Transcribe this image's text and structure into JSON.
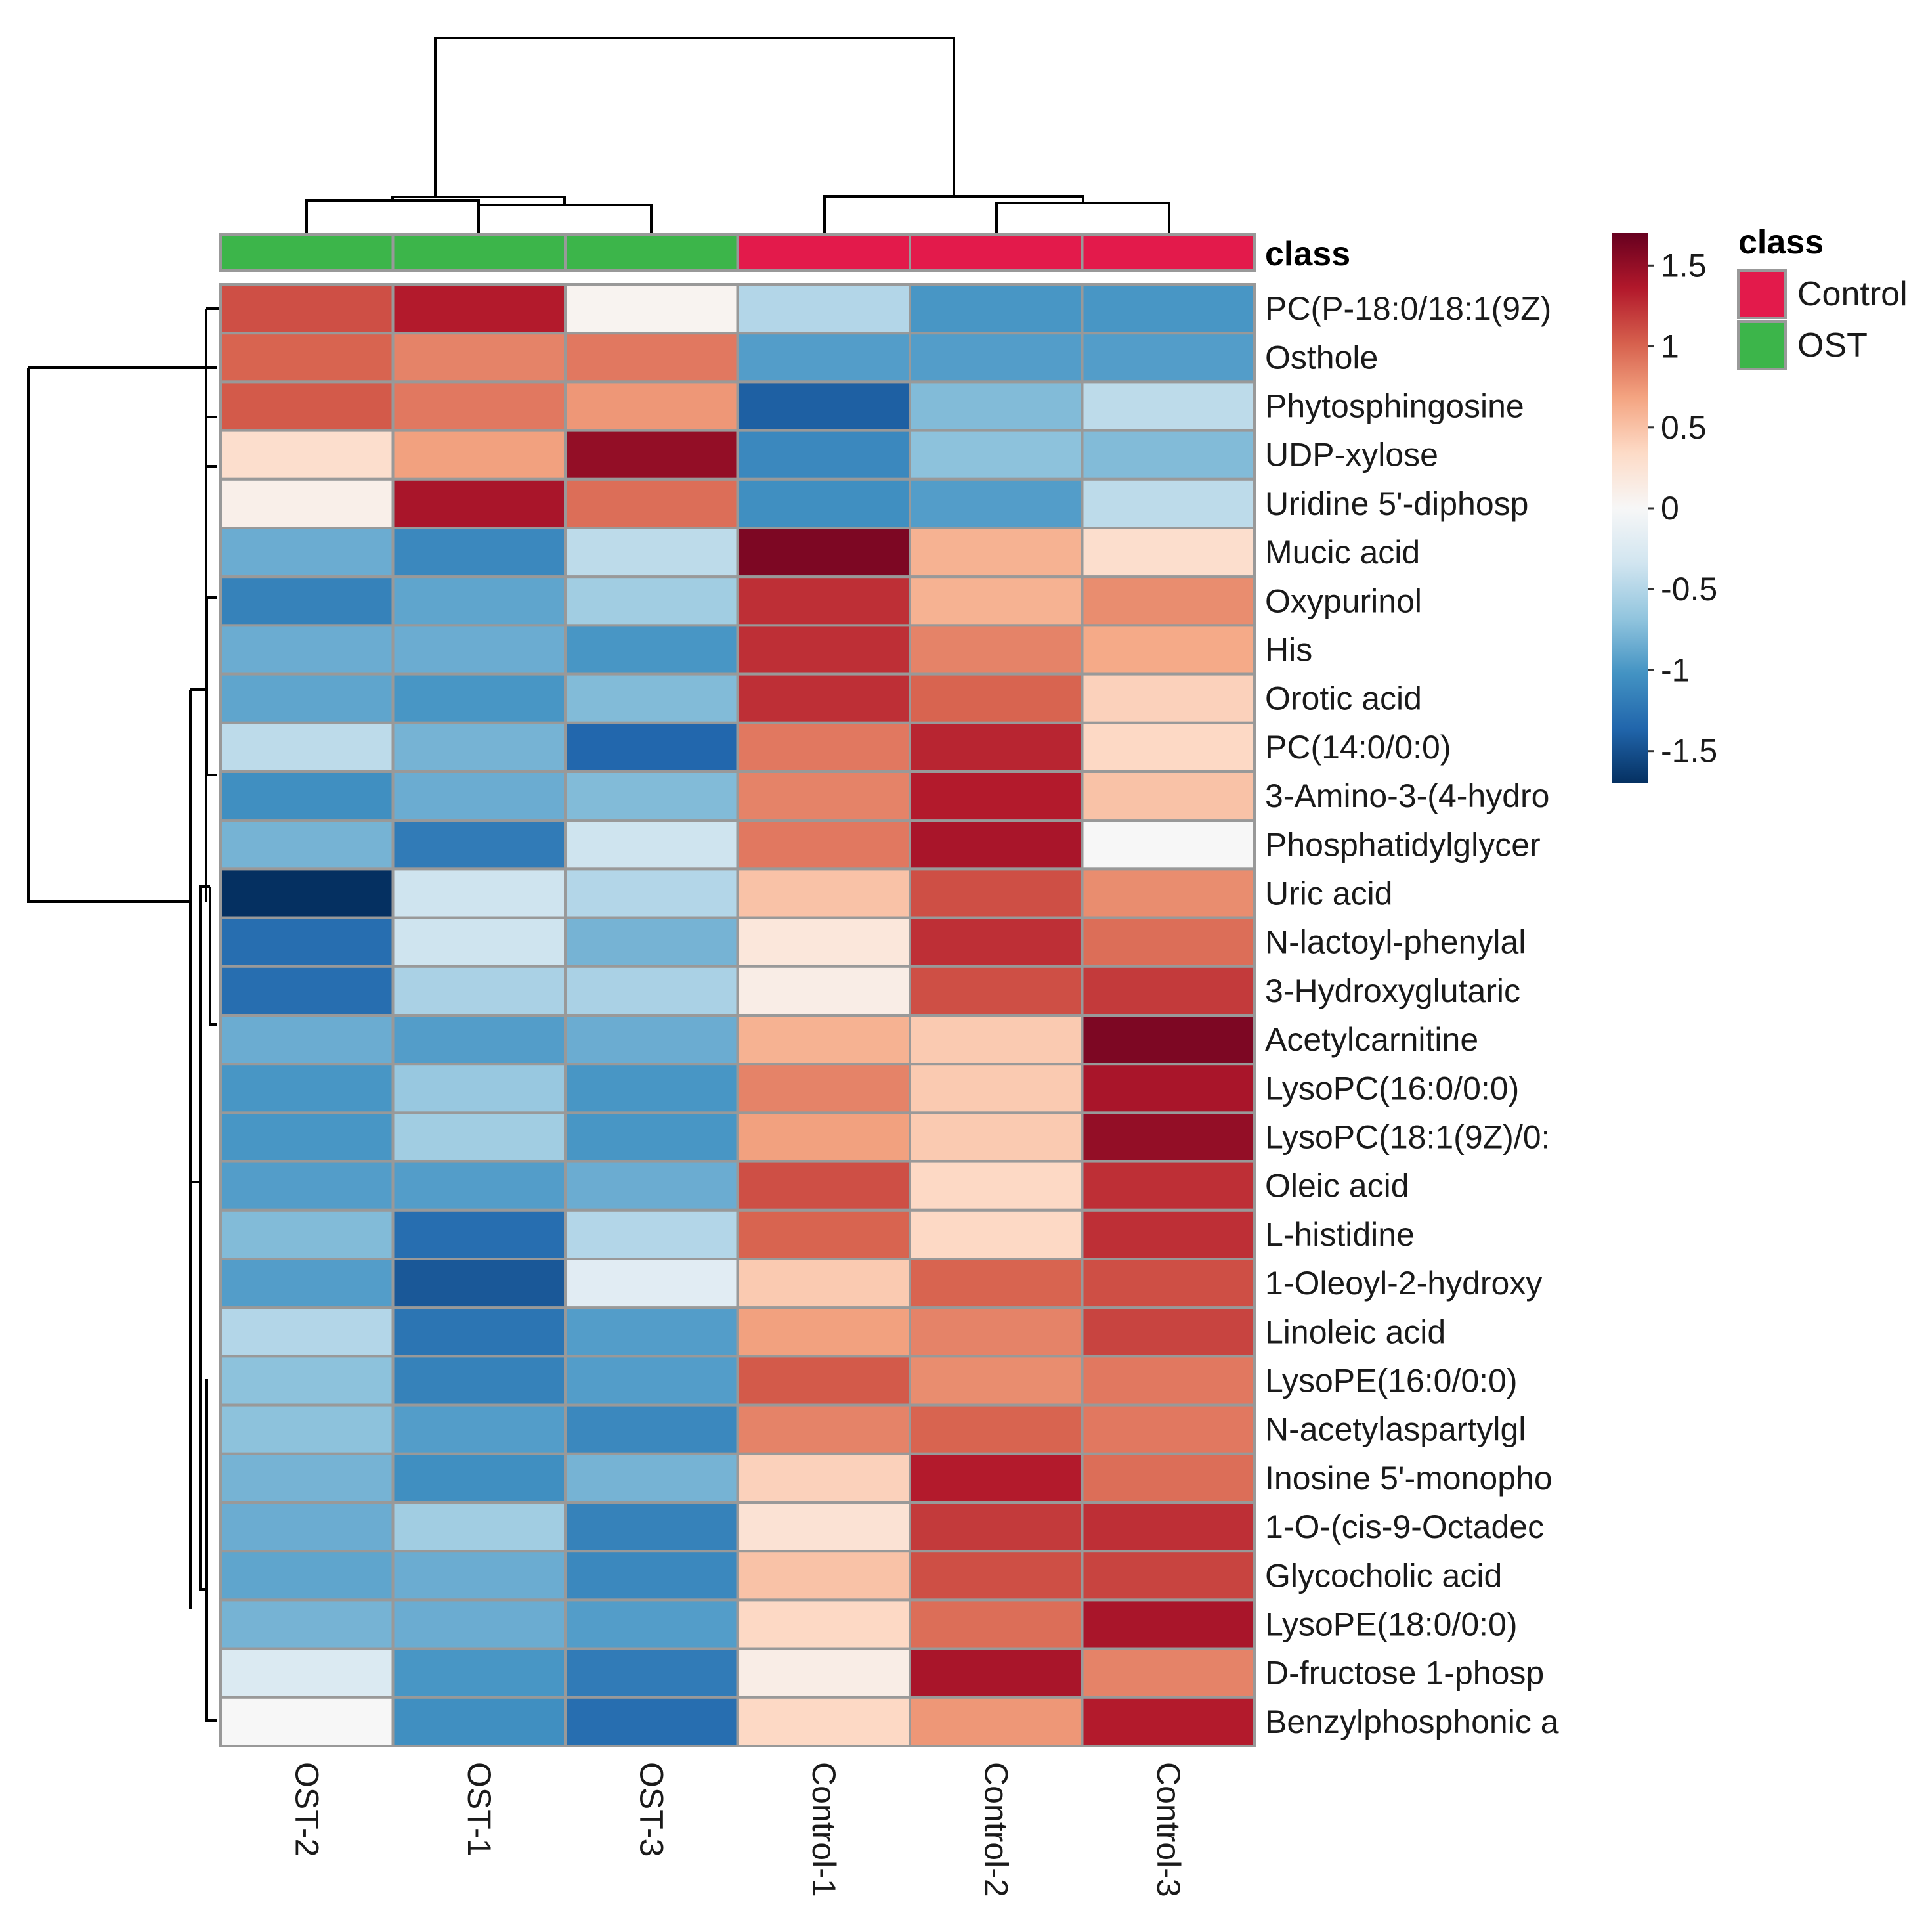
{
  "chart_data": {
    "type": "heatmap",
    "annotation_title": "class",
    "columns": [
      "OST-2",
      "OST-1",
      "OST-3",
      "Control-1",
      "Control-2",
      "Control-3"
    ],
    "column_classes": [
      "OST",
      "OST",
      "OST",
      "Control",
      "Control",
      "Control"
    ],
    "rows": [
      "PC(P-18:0/18:1(9Z)",
      "Osthole",
      "Phytosphingosine",
      "UDP-xylose",
      "Uridine 5'-diphosp",
      "Mucic acid",
      "Oxypurinol",
      "His",
      "Orotic acid",
      "PC(14:0/0:0)",
      "3-Amino-3-(4-hydro",
      "Phosphatidylglycer",
      "Uric acid",
      "N-lactoyl-phenylal",
      "3-Hydroxyglutaric",
      "Acetylcarnitine",
      "LysoPC(16:0/0:0)",
      "LysoPC(18:1(9Z)/0:",
      "Oleic acid",
      "L-histidine",
      "1-Oleoyl-2-hydroxy",
      "Linoleic acid",
      "LysoPE(16:0/0:0)",
      "N-acetylaspartylgl",
      "Inosine 5'-monopho",
      "1-O-(cis-9-Octadec",
      "Glycocholic acid",
      "LysoPE(18:0/0:0)",
      "D-fructose 1-phosp",
      "Benzylphosphonic a"
    ],
    "values": [
      [
        1.1,
        1.35,
        0.05,
        -0.5,
        -1.0,
        -1.0
      ],
      [
        1.0,
        0.85,
        0.9,
        -0.95,
        -0.95,
        -0.95
      ],
      [
        1.05,
        0.9,
        0.75,
        -1.4,
        -0.75,
        -0.45
      ],
      [
        0.3,
        0.7,
        1.5,
        -1.1,
        -0.7,
        -0.75
      ],
      [
        0.1,
        1.4,
        0.95,
        -1.05,
        -0.95,
        -0.45
      ],
      [
        -0.85,
        -1.1,
        -0.45,
        1.6,
        0.6,
        0.3
      ],
      [
        -1.15,
        -0.9,
        -0.6,
        1.25,
        0.6,
        0.8
      ],
      [
        -0.85,
        -0.85,
        -1.0,
        1.25,
        0.85,
        0.65
      ],
      [
        -0.9,
        -1.0,
        -0.75,
        1.25,
        1.0,
        0.4
      ],
      [
        -0.45,
        -0.8,
        -1.35,
        0.9,
        1.3,
        0.35
      ],
      [
        -1.05,
        -0.85,
        -0.75,
        0.85,
        1.35,
        0.5
      ],
      [
        -0.8,
        -1.2,
        -0.35,
        0.9,
        1.4,
        0.0
      ],
      [
        -1.7,
        -0.35,
        -0.5,
        0.5,
        1.1,
        0.8
      ],
      [
        -1.3,
        -0.35,
        -0.8,
        0.2,
        1.25,
        0.95
      ],
      [
        -1.3,
        -0.55,
        -0.55,
        0.12,
        1.1,
        1.2
      ],
      [
        -0.85,
        -0.95,
        -0.85,
        0.6,
        0.45,
        1.6
      ],
      [
        -1.0,
        -0.65,
        -1.0,
        0.85,
        0.45,
        1.4
      ],
      [
        -1.0,
        -0.6,
        -1.0,
        0.7,
        0.45,
        1.5
      ],
      [
        -0.95,
        -0.95,
        -0.85,
        1.1,
        0.35,
        1.25
      ],
      [
        -0.75,
        -1.3,
        -0.5,
        1.0,
        0.35,
        1.25
      ],
      [
        -0.95,
        -1.45,
        -0.2,
        0.45,
        1.0,
        1.1
      ],
      [
        -0.5,
        -1.25,
        -0.95,
        0.7,
        0.85,
        1.15
      ],
      [
        -0.7,
        -1.15,
        -0.95,
        1.05,
        0.8,
        0.9
      ],
      [
        -0.7,
        -0.95,
        -1.1,
        0.85,
        1.0,
        0.9
      ],
      [
        -0.8,
        -1.05,
        -0.8,
        0.4,
        1.35,
        0.95
      ],
      [
        -0.85,
        -0.6,
        -1.15,
        0.25,
        1.2,
        1.25
      ],
      [
        -0.9,
        -0.85,
        -1.1,
        0.5,
        1.1,
        1.15
      ],
      [
        -0.8,
        -0.85,
        -0.95,
        0.35,
        0.95,
        1.4
      ],
      [
        -0.25,
        -1.0,
        -1.2,
        0.12,
        1.4,
        0.85
      ],
      [
        0.0,
        -1.05,
        -1.3,
        0.35,
        0.75,
        1.35
      ]
    ],
    "color_scale": {
      "min": -1.7,
      "max": 1.7,
      "ticks": [
        1.5,
        1,
        0.5,
        0,
        -0.5,
        -1,
        -1.5
      ],
      "tick_labels": [
        "1.5",
        "1",
        "0.5",
        "0",
        "-0.5",
        "-1",
        "-1.5"
      ],
      "stops": [
        "#053061",
        "#2166ac",
        "#4393c3",
        "#92c5de",
        "#d1e5f0",
        "#f7f7f7",
        "#fddbc7",
        "#f4a582",
        "#d6604d",
        "#b2182b",
        "#67001f"
      ]
    },
    "legend": {
      "title": "class",
      "entries": [
        {
          "label": "Control",
          "color": "#e31a4b"
        },
        {
          "label": "OST",
          "color": "#3cb54a"
        }
      ]
    }
  }
}
